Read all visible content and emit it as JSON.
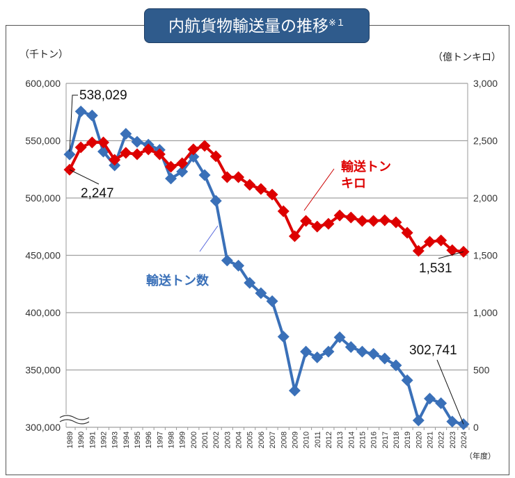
{
  "title": "内航貨物輸送量の推移",
  "title_note": "※１",
  "chart_data": {
    "type": "line",
    "title": "内航貨物輸送量の推移※１",
    "left_unit": "（千トン）",
    "right_unit": "（億トンキロ）",
    "x_unit": "（年度）",
    "x": [
      1989,
      1990,
      1991,
      1992,
      1993,
      1994,
      1995,
      1996,
      1997,
      1998,
      1999,
      2000,
      2001,
      2002,
      2003,
      2004,
      2005,
      2006,
      2007,
      2008,
      2009,
      2010,
      2011,
      2012,
      2013,
      2014,
      2015,
      2016,
      2017,
      2018,
      2019,
      2020,
      2021,
      2022,
      2023,
      2024
    ],
    "y_left": {
      "range": [
        300000,
        600000
      ],
      "ticks": [
        "300,000",
        "350,000",
        "400,000",
        "450,000",
        "500,000",
        "550,000",
        "600,000"
      ],
      "axis_break": true
    },
    "y_right": {
      "range": [
        0,
        3000
      ],
      "ticks": [
        "0",
        "500",
        "1,000",
        "1,500",
        "2,000",
        "2,500",
        "3,000"
      ]
    },
    "grid": true,
    "series": [
      {
        "name": "輸送トン数",
        "axis": "left",
        "color": "#3a70b8",
        "values": [
          538029,
          575500,
          572000,
          540500,
          528500,
          556000,
          549000,
          546500,
          542000,
          517000,
          523000,
          536000,
          520000,
          497500,
          445500,
          441000,
          426000,
          417000,
          410000,
          379000,
          332000,
          366000,
          361000,
          366000,
          378500,
          370000,
          366000,
          364000,
          360000,
          354000,
          341000,
          306000,
          325000,
          321000,
          305000,
          302741
        ]
      },
      {
        "name": "輸送トンキロ",
        "axis": "right",
        "color": "#dd0000",
        "values": [
          2247,
          2442,
          2485,
          2485,
          2333,
          2394,
          2382,
          2424,
          2382,
          2273,
          2303,
          2424,
          2455,
          2364,
          2182,
          2182,
          2115,
          2079,
          2030,
          1885,
          1667,
          1800,
          1751,
          1775,
          1848,
          1830,
          1800,
          1800,
          1806,
          1788,
          1697,
          1539,
          1618,
          1630,
          1545,
          1531
        ]
      }
    ],
    "annotations": [
      "538,029",
      "2,247",
      "1,531",
      "302,741"
    ],
    "series_labels": {
      "blue": "輸送トン数",
      "red_line1": "輸送トン",
      "red_line2": "キロ"
    }
  }
}
